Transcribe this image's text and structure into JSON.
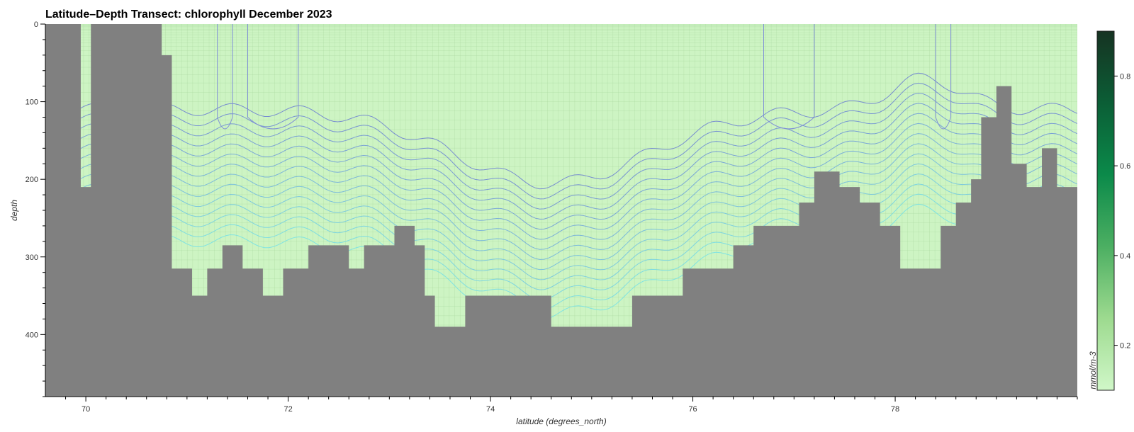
{
  "chart_data": {
    "type": "heatmap",
    "title": "Latitude–Depth Transect: chlorophyll December 2023",
    "xlabel": "latitude (degrees_north)",
    "ylabel": "depth",
    "xlim": [
      69.6,
      79.8
    ],
    "ylim": [
      480,
      0
    ],
    "xticks": [
      70,
      72,
      74,
      76,
      78
    ],
    "yticks": [
      0,
      100,
      200,
      300,
      400
    ],
    "colorbar": {
      "label": "mmol/m-3",
      "range": [
        0.1,
        0.9
      ],
      "ticks": [
        0.2,
        0.4,
        0.6,
        0.8
      ],
      "colors": [
        "#d0f7c8",
        "#9dda8f",
        "#4caf62",
        "#0b8a4a",
        "#0b5e36",
        "#163322"
      ]
    },
    "land_color": "#808080",
    "sea_color": "#cdf4c3",
    "bottom_depth_profile": {
      "latitude": [
        69.6,
        69.95,
        70.05,
        70.75,
        70.85,
        71.05,
        71.2,
        71.35,
        71.55,
        71.75,
        71.95,
        72.05,
        72.2,
        72.45,
        72.6,
        72.75,
        72.85,
        73.05,
        73.25,
        73.35,
        73.45,
        73.55,
        73.75,
        74.0,
        74.4,
        74.6,
        74.8,
        75.0,
        75.2,
        75.4,
        75.6,
        75.9,
        76.15,
        76.4,
        76.6,
        76.85,
        77.05,
        77.2,
        77.45,
        77.65,
        77.85,
        78.05,
        78.25,
        78.45,
        78.6,
        78.75,
        78.85,
        79.0,
        79.15,
        79.3,
        79.45,
        79.6,
        79.8
      ],
      "depth": [
        0,
        210,
        0,
        40,
        315,
        350,
        315,
        285,
        315,
        350,
        315,
        315,
        285,
        285,
        315,
        285,
        285,
        260,
        285,
        350,
        390,
        390,
        350,
        350,
        350,
        390,
        390,
        390,
        390,
        350,
        350,
        315,
        315,
        285,
        260,
        260,
        230,
        190,
        210,
        230,
        260,
        315,
        315,
        260,
        230,
        200,
        120,
        80,
        180,
        210,
        160,
        210,
        190
      ]
    },
    "contour_levels": 14
  }
}
